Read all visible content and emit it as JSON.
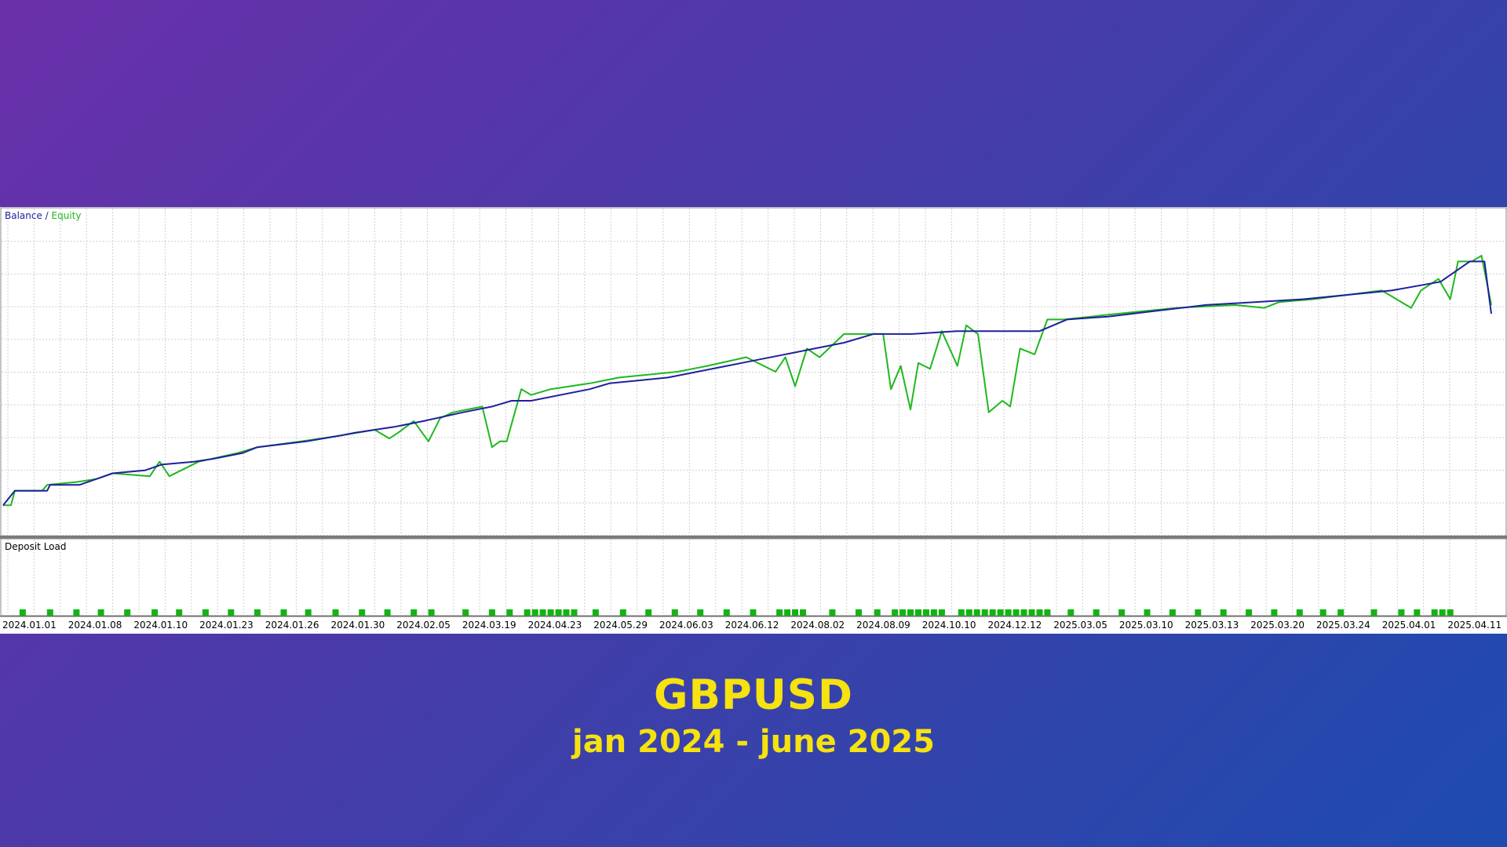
{
  "caption": {
    "title": "GBPUSD",
    "subtitle": "jan 2024 - june 2025"
  },
  "colors": {
    "balance": "#1f1f9e",
    "equity": "#1fb81f",
    "deposit_load": "#11b511",
    "grid": "#cfcfcf",
    "caption_text": "#f5e20f"
  },
  "chart_data": [
    {
      "type": "line",
      "legend": {
        "balance_label": "Balance",
        "separator": " / ",
        "equity_label": "Equity",
        "position": "top-left"
      },
      "grid": true,
      "x_tick_labels": [
        "2024.01.01",
        "2024.01.08",
        "2024.01.10",
        "2024.01.23",
        "2024.01.26",
        "2024.01.30",
        "2024.02.05",
        "2024.03.19",
        "2024.04.23",
        "2024.05.29",
        "2024.06.03",
        "2024.06.12",
        "2024.08.02",
        "2024.08.09",
        "2024.10.10",
        "2024.12.12",
        "2025.03.05",
        "2025.03.10",
        "2025.03.13",
        "2025.03.20",
        "2025.03.24",
        "2025.04.01",
        "2025.04.11"
      ],
      "ylim": [
        0,
        100
      ],
      "series": [
        {
          "name": "Balance",
          "x": [
            0,
            12,
            45,
            48,
            78,
            95,
            112,
            145,
            162,
            195,
            215,
            245,
            260,
            310,
            345,
            360,
            400,
            430,
            470,
            500,
            520,
            540,
            600,
            620,
            650,
            680,
            710,
            740,
            770,
            800,
            830,
            860,
            890,
            930,
            975,
            1015,
            1060,
            1088,
            1130,
            1180,
            1230,
            1280,
            1330,
            1390,
            1420,
            1470,
            1500,
            1515,
            1522
          ],
          "y": [
            4,
            9,
            9,
            11,
            11,
            13,
            15,
            16,
            18,
            19,
            20,
            22,
            24,
            26,
            28,
            29,
            31,
            33,
            36,
            38,
            40,
            40,
            44,
            46,
            47,
            48,
            50,
            52,
            54,
            56,
            58,
            60,
            63,
            63,
            64,
            64,
            64,
            68,
            69,
            71,
            73,
            74,
            75,
            77,
            78,
            81,
            88,
            88,
            70
          ]
        },
        {
          "name": "Equity",
          "x": [
            0,
            8,
            12,
            40,
            45,
            75,
            95,
            112,
            150,
            160,
            170,
            200,
            240,
            260,
            305,
            345,
            380,
            395,
            404,
            420,
            435,
            447,
            460,
            490,
            500,
            508,
            515,
            530,
            540,
            560,
            600,
            630,
            690,
            720,
            760,
            790,
            800,
            810,
            822,
            835,
            860,
            880,
            900,
            908,
            918,
            928,
            936,
            948,
            960,
            976,
            985,
            997,
            1008,
            1022,
            1030,
            1040,
            1055,
            1068,
            1075,
            1085,
            1140,
            1200,
            1260,
            1290,
            1305,
            1340,
            1410,
            1425,
            1440,
            1450,
            1468,
            1480,
            1488,
            1502,
            1512,
            1522
          ],
          "y": [
            4,
            4,
            9,
            9,
            11,
            12,
            13,
            15,
            14,
            19,
            14,
            19,
            22,
            24,
            26,
            28,
            30,
            27,
            29,
            33,
            26,
            34,
            36,
            38,
            24,
            26,
            26,
            44,
            42,
            44,
            46,
            48,
            50,
            52,
            55,
            50,
            55,
            45,
            58,
            55,
            63,
            63,
            63,
            44,
            52,
            37,
            53,
            51,
            64,
            52,
            66,
            63,
            36,
            40,
            38,
            58,
            56,
            68,
            68,
            68,
            70,
            72,
            73,
            72,
            74,
            75,
            78,
            75,
            72,
            78,
            82,
            75,
            88,
            88,
            90,
            73
          ]
        }
      ]
    },
    {
      "type": "bar",
      "title": "Deposit Load",
      "bar_positions": [
        20,
        48,
        75,
        100,
        127,
        155,
        180,
        207,
        233,
        260,
        287,
        312,
        340,
        367,
        393,
        420,
        438,
        473,
        500,
        518,
        536,
        544,
        552,
        560,
        568,
        576,
        584,
        606,
        634,
        660,
        687,
        713,
        740,
        767,
        794,
        802,
        810,
        818,
        848,
        875,
        894,
        912,
        920,
        928,
        936,
        944,
        952,
        960,
        980,
        988,
        996,
        1004,
        1012,
        1020,
        1028,
        1036,
        1044,
        1052,
        1060,
        1068,
        1092,
        1118,
        1144,
        1170,
        1196,
        1222,
        1248,
        1274,
        1300,
        1326,
        1350,
        1368,
        1402,
        1430,
        1446,
        1464,
        1472,
        1480
      ],
      "value": 1
    }
  ]
}
